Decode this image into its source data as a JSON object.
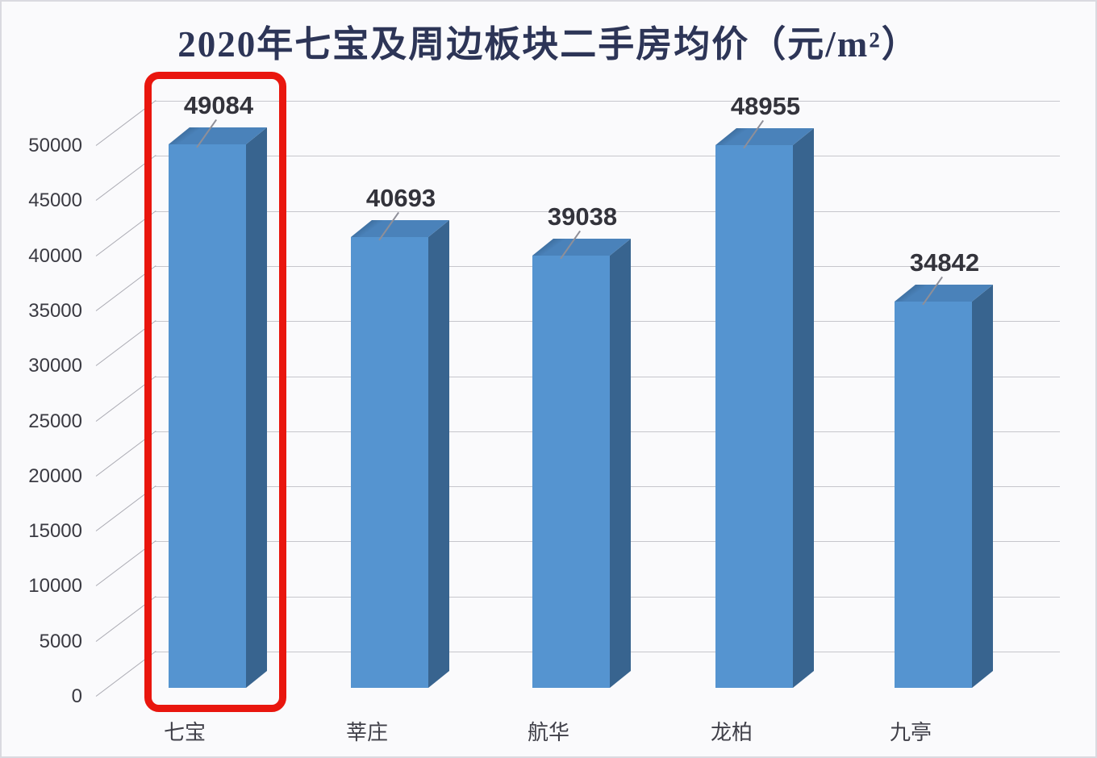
{
  "title": "2020年七宝及周边板块二手房均价（元/m²）",
  "chart_data": {
    "type": "bar",
    "style": "3d-column",
    "title": "2020年七宝及周边板块二手房均价（元/m²）",
    "categories": [
      "七宝",
      "莘庄",
      "航华",
      "龙柏",
      "九亭"
    ],
    "values": [
      49084,
      40693,
      39038,
      48955,
      34842
    ],
    "value_labels": [
      "49084",
      "40693",
      "39038",
      "48955",
      "34842"
    ],
    "xlabel": "",
    "ylabel": "",
    "ylim": [
      0,
      50000
    ],
    "ytick_interval": 5000,
    "ytick_labels": [
      "0",
      "5000",
      "10000",
      "15000",
      "20000",
      "25000",
      "30000",
      "35000",
      "40000",
      "45000",
      "50000"
    ],
    "grid": true,
    "legend": false,
    "highlight": {
      "category": "七宝",
      "shape": "red-rounded-rectangle",
      "color": "#e9160e"
    },
    "colors": {
      "bar_front": "#5594d0",
      "bar_top": "#4a82ba",
      "bar_top_edge": "#3e6fa0",
      "bar_side": "#38648f",
      "title": "#2d3557",
      "gridline": "#c6c6cc",
      "tick_line": "#ababb3",
      "labels": "#3a3a42",
      "background": "#fafafc"
    }
  }
}
